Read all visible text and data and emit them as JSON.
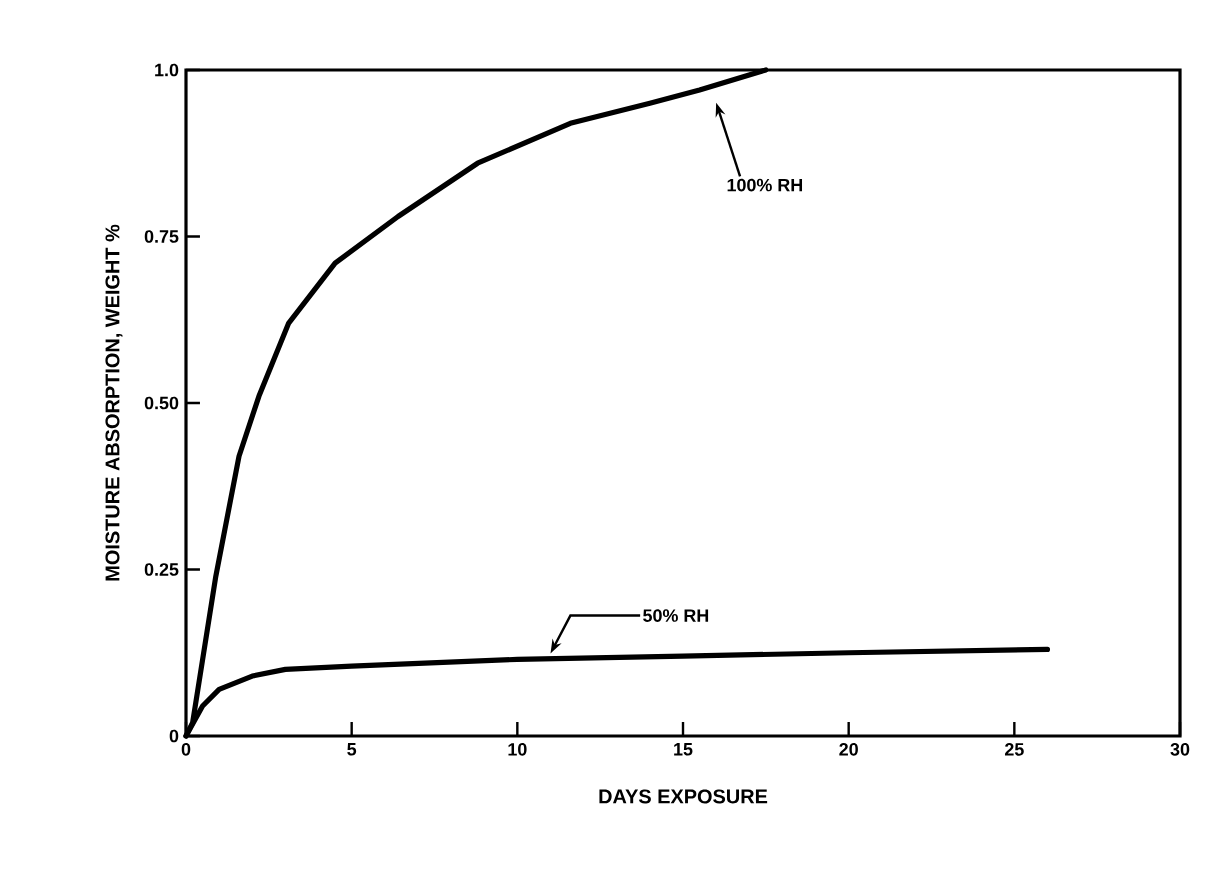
{
  "chart_data": {
    "type": "line",
    "xlabel": "DAYS EXPOSURE",
    "ylabel": "MOISTURE ABSORPTION, WEIGHT %",
    "xlim": [
      0,
      30
    ],
    "ylim": [
      0,
      1.0
    ],
    "xticks": [
      0,
      5,
      10,
      15,
      20,
      25,
      30
    ],
    "yticks": [
      0,
      0.25,
      {
        "value": 0.5,
        "label": "0.50"
      },
      0.75,
      {
        "value": 1.0,
        "label": "1.0"
      }
    ],
    "marker": "none",
    "line_style": "solid",
    "series": [
      {
        "color": "#000000",
        "x": [
          0,
          0.2,
          0.9,
          1.6,
          2.2,
          3.1,
          4.5,
          6.4,
          8.8,
          11.6,
          14,
          15.5,
          17.5
        ],
        "values": [
          0,
          0.02,
          0.24,
          0.42,
          0.51,
          0.62,
          0.71,
          0.78,
          0.86,
          0.92,
          0.95,
          0.97,
          1.0
        ]
      },
      {
        "color": "#000000",
        "x": [
          0,
          0.5,
          1,
          2,
          3,
          5,
          10,
          15,
          20,
          26
        ],
        "values": [
          0,
          0.045,
          0.07,
          0.09,
          0.1,
          0.105,
          0.115,
          0.12,
          0.125,
          0.13
        ]
      }
    ],
    "annotations": [
      {
        "text": "100% RH",
        "x": 16,
        "y": 0.96
      },
      {
        "text": "50% RH",
        "x": 11,
        "y": 0.115
      }
    ]
  }
}
